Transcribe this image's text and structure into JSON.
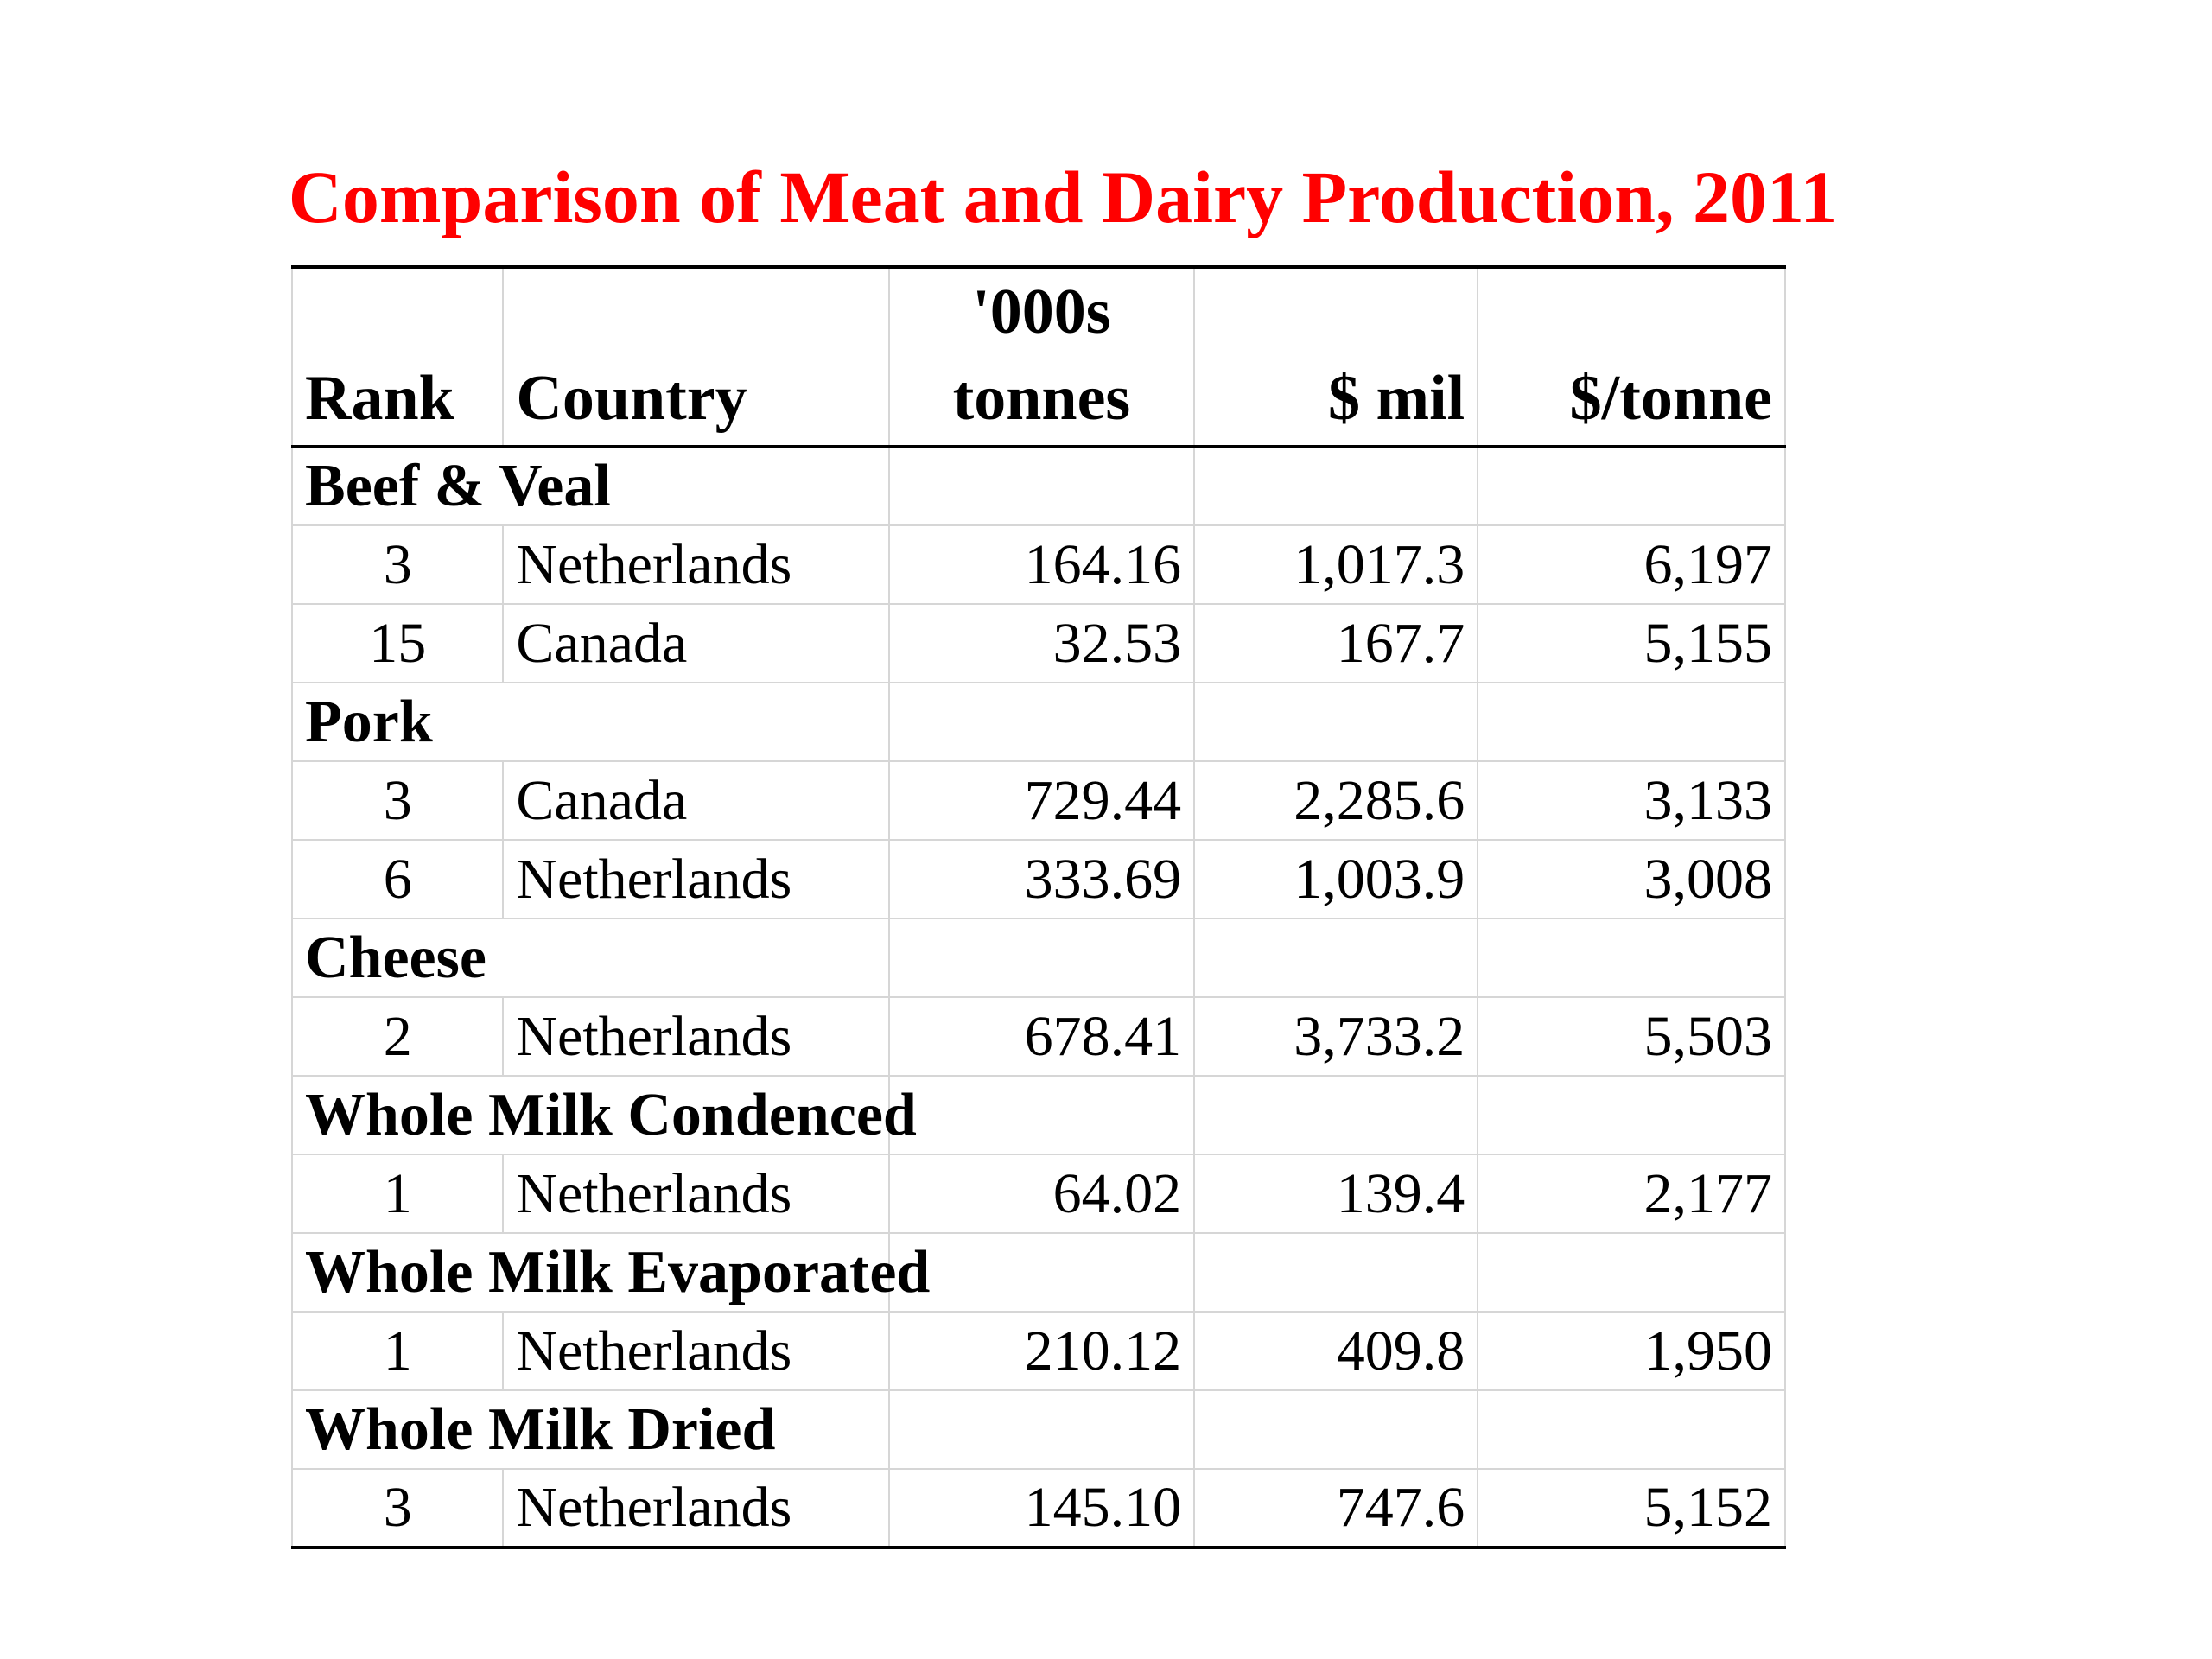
{
  "chart_data": {
    "type": "table",
    "title": "Comparison of Meat and Dairy Production, 2011",
    "columns": [
      "Rank",
      "Country",
      "'000s tonnes",
      "$ mil",
      "$/tonne"
    ],
    "column_header_lines": {
      "tonnes": [
        "'000s",
        "tonnes"
      ]
    },
    "groups": [
      {
        "name": "Beef & Veal",
        "rows": [
          {
            "rank": "3",
            "country": "Netherlands",
            "tonnes": "164.16",
            "mil": "1,017.3",
            "per_tonne": "6,197"
          },
          {
            "rank": "15",
            "country": "Canada",
            "tonnes": "32.53",
            "mil": "167.7",
            "per_tonne": "5,155"
          }
        ]
      },
      {
        "name": "Pork",
        "rows": [
          {
            "rank": "3",
            "country": "Canada",
            "tonnes": "729.44",
            "mil": "2,285.6",
            "per_tonne": "3,133"
          },
          {
            "rank": "6",
            "country": "Netherlands",
            "tonnes": "333.69",
            "mil": "1,003.9",
            "per_tonne": "3,008"
          }
        ]
      },
      {
        "name": "Cheese",
        "rows": [
          {
            "rank": "2",
            "country": "Netherlands",
            "tonnes": "678.41",
            "mil": "3,733.2",
            "per_tonne": "5,503"
          }
        ]
      },
      {
        "name": "Whole Milk Condenced",
        "rows": [
          {
            "rank": "1",
            "country": "Netherlands",
            "tonnes": "64.02",
            "mil": "139.4",
            "per_tonne": "2,177"
          }
        ]
      },
      {
        "name": "Whole Milk Evaporated",
        "rows": [
          {
            "rank": "1",
            "country": "Netherlands",
            "tonnes": "210.12",
            "mil": "409.8",
            "per_tonne": "1,950"
          }
        ]
      },
      {
        "name": "Whole Milk Dried",
        "rows": [
          {
            "rank": "3",
            "country": "Netherlands",
            "tonnes": "145.10",
            "mil": "747.6",
            "per_tonne": "5,152"
          }
        ]
      }
    ]
  },
  "colors": {
    "title": "#ff0000",
    "gridline": "#d6d6d6",
    "rule": "#000000"
  }
}
